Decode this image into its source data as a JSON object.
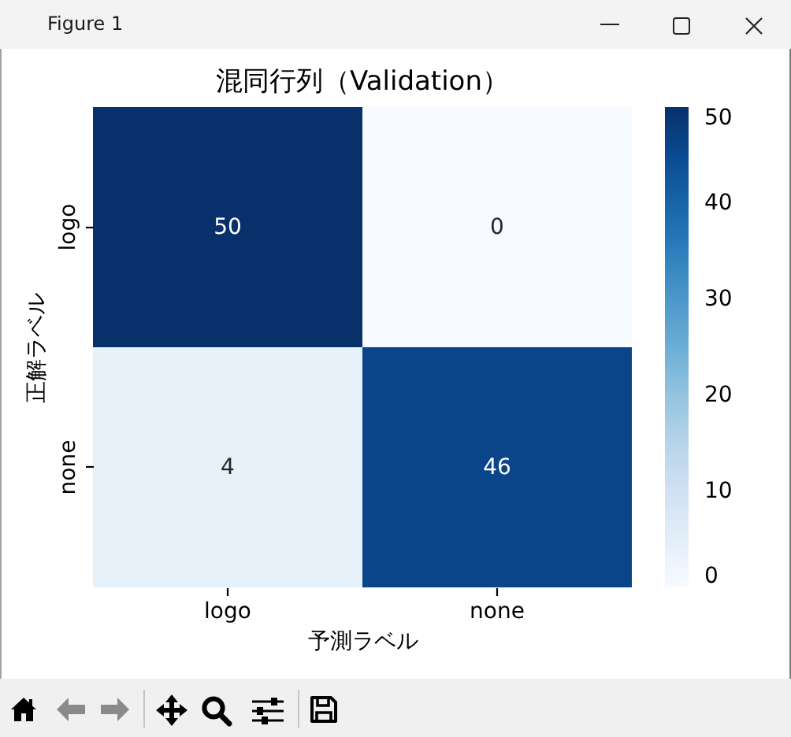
{
  "chart_data": {
    "type": "heatmap",
    "title": "混同行列（Validation）",
    "xlabel": "予測ラベル",
    "ylabel": "正解ラベル",
    "categories": [
      "logo",
      "none"
    ],
    "y_categories": [
      "logo",
      "none"
    ],
    "cells": [
      [
        50,
        0
      ],
      [
        4,
        46
      ]
    ],
    "clim": [
      0,
      50
    ],
    "cticks": [
      0,
      10,
      20,
      30,
      40,
      50
    ],
    "data_labels": true,
    "annotations": [
      "Figure 1"
    ]
  }
}
